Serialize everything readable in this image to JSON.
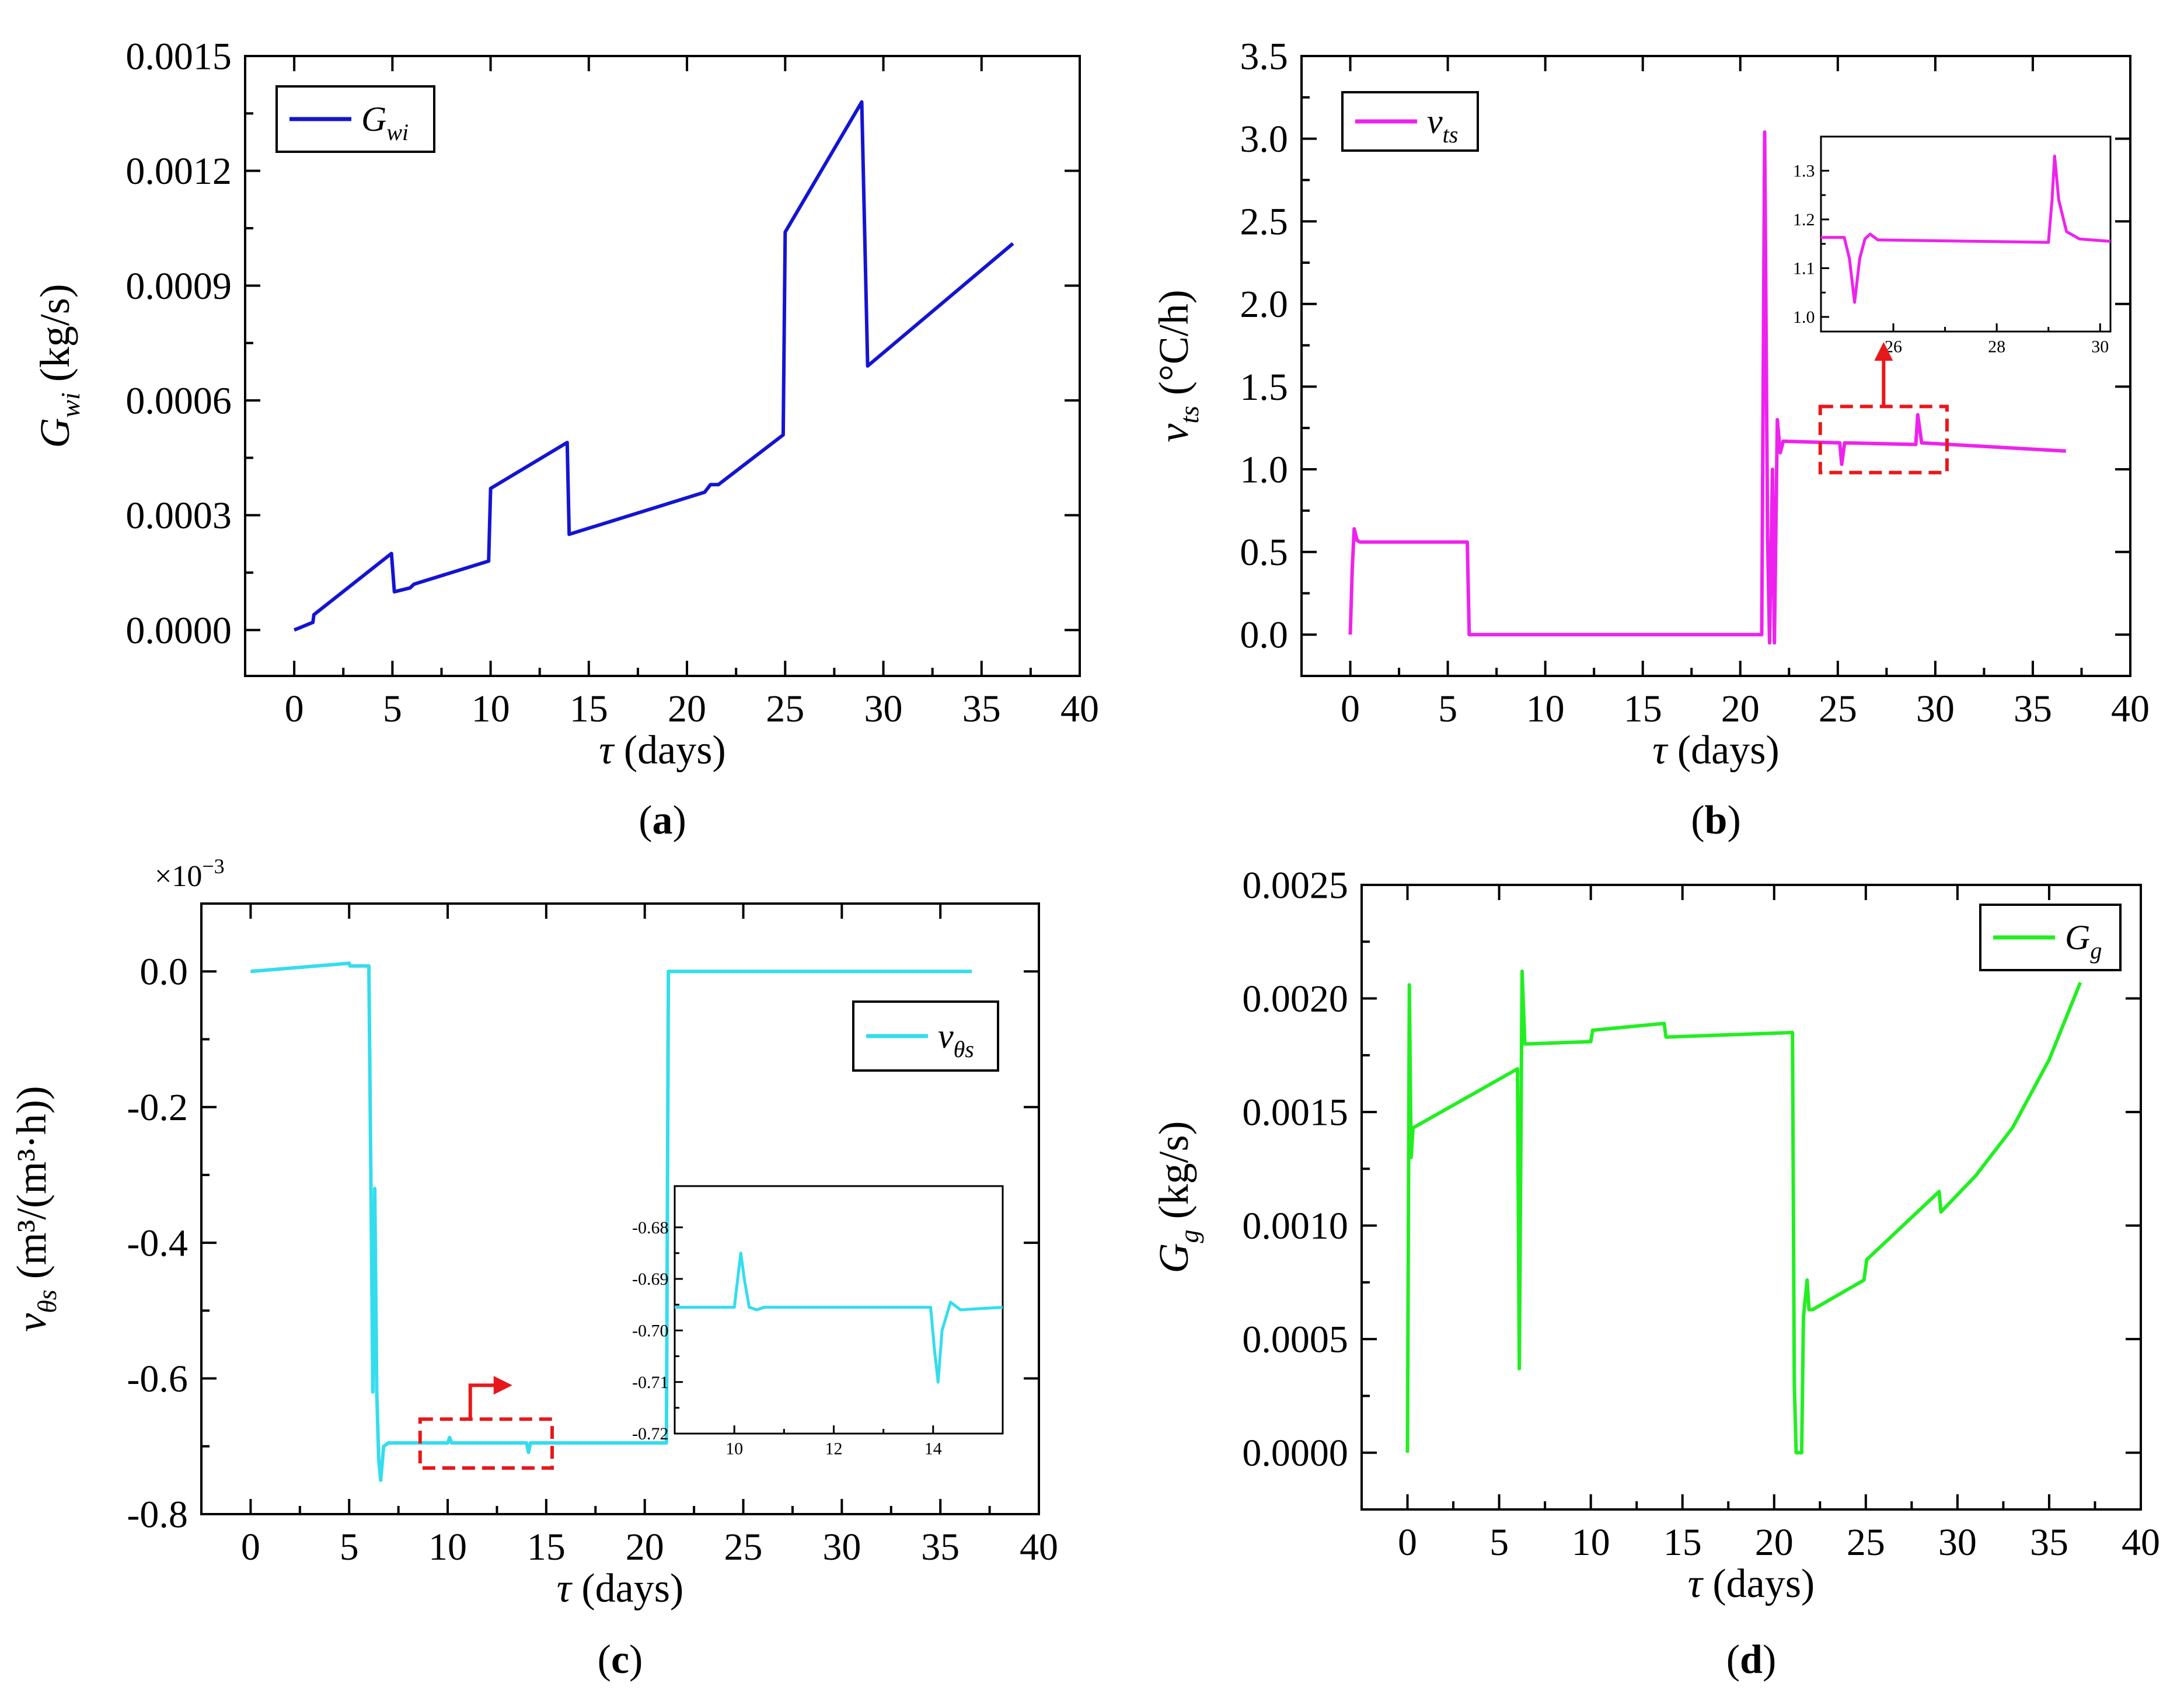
{
  "chart_data": [
    {
      "id": "a",
      "type": "line",
      "panel_label": "a",
      "xlabel_symbol": "τ",
      "xlabel_unit": "(days)",
      "ylabel_main": "G",
      "ylabel_sub": "wi",
      "ylabel_unit": "(kg/s)",
      "xlim": [
        -2.5,
        40
      ],
      "ylim": [
        -0.00012,
        0.0015
      ],
      "xticks": [
        0,
        5,
        10,
        15,
        20,
        25,
        30,
        35,
        40
      ],
      "yticks": [
        0.0,
        0.0003,
        0.0006,
        0.0009,
        0.0012,
        0.0015
      ],
      "ytick_labels": [
        "0.0000",
        "0.0003",
        "0.0006",
        "0.0009",
        "0.0012",
        "0.0015"
      ],
      "legend": {
        "main": "G",
        "sub": "wi",
        "position": "top-left"
      },
      "series": [
        {
          "name": "G_wi",
          "color": "#1414d2",
          "points": [
            [
              0,
              0
            ],
            [
              0.95,
              2e-05
            ],
            [
              1.0,
              4e-05
            ],
            [
              4.95,
              0.0002
            ],
            [
              5.1,
              0.0001
            ],
            [
              5.9,
              0.00011
            ],
            [
              6.1,
              0.00012
            ],
            [
              9.9,
              0.00018
            ],
            [
              10.0,
              0.00037
            ],
            [
              13.9,
              0.00049
            ],
            [
              14.0,
              0.00025
            ],
            [
              20.9,
              0.00036
            ],
            [
              21.2,
              0.00038
            ],
            [
              21.6,
              0.00038
            ],
            [
              24.9,
              0.00051
            ],
            [
              25.0,
              0.00104
            ],
            [
              28.9,
              0.00138
            ],
            [
              29.2,
              0.00069
            ],
            [
              36.6,
              0.00101
            ]
          ]
        }
      ]
    },
    {
      "id": "b",
      "type": "line",
      "panel_label": "b",
      "xlabel_symbol": "τ",
      "xlabel_unit": "(days)",
      "ylabel_main": "v",
      "ylabel_sub": "ts",
      "ylabel_unit": "(°C/h)",
      "xlim": [
        -2.5,
        40
      ],
      "ylim": [
        -0.25,
        3.5
      ],
      "xticks": [
        0,
        5,
        10,
        15,
        20,
        25,
        30,
        35,
        40
      ],
      "yticks": [
        0.0,
        0.5,
        1.0,
        1.5,
        2.0,
        2.5,
        3.0,
        3.5
      ],
      "ytick_labels": [
        "0.0",
        "0.5",
        "1.0",
        "1.5",
        "2.0",
        "2.5",
        "3.0",
        "3.5"
      ],
      "legend": {
        "main": "v",
        "sub": "ts",
        "position": "top-left"
      },
      "series": [
        {
          "name": "v_ts",
          "color": "#ee22ee",
          "points": [
            [
              0,
              0
            ],
            [
              0.1,
              0.4
            ],
            [
              0.2,
              0.64
            ],
            [
              0.35,
              0.57
            ],
            [
              0.5,
              0.56
            ],
            [
              6,
              0.56
            ],
            [
              6.1,
              0
            ],
            [
              21.1,
              0
            ],
            [
              21.25,
              3.04
            ],
            [
              21.4,
              0.6
            ],
            [
              21.5,
              -0.05
            ],
            [
              21.65,
              1.0
            ],
            [
              21.75,
              -0.05
            ],
            [
              21.9,
              1.3
            ],
            [
              22.05,
              1.1
            ],
            [
              22.2,
              1.17
            ],
            [
              25.1,
              1.16
            ],
            [
              25.2,
              1.03
            ],
            [
              25.35,
              1.16
            ],
            [
              29.0,
              1.15
            ],
            [
              29.1,
              1.33
            ],
            [
              29.3,
              1.16
            ],
            [
              36.7,
              1.11
            ]
          ]
        }
      ],
      "inset": {
        "xlim": [
          24.6,
          30.2
        ],
        "ylim": [
          0.97,
          1.37
        ],
        "xticks": [
          26,
          28,
          30
        ],
        "yticks": [
          1.0,
          1.1,
          1.2,
          1.3
        ],
        "ytick_labels": [
          "1.0",
          "1.1",
          "1.2",
          "1.3"
        ],
        "points": [
          [
            24.6,
            1.163
          ],
          [
            25.05,
            1.163
          ],
          [
            25.15,
            1.12
          ],
          [
            25.25,
            1.03
          ],
          [
            25.35,
            1.12
          ],
          [
            25.45,
            1.16
          ],
          [
            25.55,
            1.17
          ],
          [
            25.7,
            1.158
          ],
          [
            29.0,
            1.153
          ],
          [
            29.07,
            1.24
          ],
          [
            29.12,
            1.33
          ],
          [
            29.2,
            1.24
          ],
          [
            29.35,
            1.175
          ],
          [
            29.6,
            1.16
          ],
          [
            30.2,
            1.155
          ]
        ],
        "zoom_box_xlim": [
          24.1,
          30.6
        ],
        "zoom_box_ylim": [
          0.98,
          1.38
        ]
      }
    },
    {
      "id": "c",
      "type": "line",
      "panel_label": "c",
      "multiplier_label": "×10",
      "multiplier_exp": "−3",
      "xlabel_symbol": "τ",
      "xlabel_unit": "(days)",
      "ylabel_main": "v",
      "ylabel_sub": "θs",
      "ylabel_unit": "(m³/(m³·h))",
      "xlim": [
        -2.5,
        40
      ],
      "ylim": [
        -0.8,
        0.1
      ],
      "xticks": [
        0,
        5,
        10,
        15,
        20,
        25,
        30,
        35,
        40
      ],
      "yticks": [
        -0.8,
        -0.6,
        -0.4,
        -0.2,
        0.0
      ],
      "ytick_labels": [
        "-0.8",
        "-0.6",
        "-0.4",
        "-0.2",
        "0.0"
      ],
      "legend": {
        "main": "v",
        "sub": "θs",
        "position": "top-right"
      },
      "series": [
        {
          "name": "v_θs",
          "color": "#33ddee",
          "points": [
            [
              0,
              0
            ],
            [
              5,
              0.012
            ],
            [
              5.05,
              0.008
            ],
            [
              6,
              0.008
            ],
            [
              6.1,
              -0.3
            ],
            [
              6.2,
              -0.62
            ],
            [
              6.3,
              -0.32
            ],
            [
              6.4,
              -0.62
            ],
            [
              6.5,
              -0.72
            ],
            [
              6.6,
              -0.75
            ],
            [
              6.75,
              -0.7
            ],
            [
              7.0,
              -0.695
            ],
            [
              10,
              -0.695
            ],
            [
              10.1,
              -0.687
            ],
            [
              10.2,
              -0.695
            ],
            [
              14,
              -0.695
            ],
            [
              14.1,
              -0.709
            ],
            [
              14.2,
              -0.695
            ],
            [
              21.1,
              -0.695
            ],
            [
              21.2,
              0
            ],
            [
              36.6,
              0
            ]
          ]
        }
      ],
      "inset": {
        "xlim": [
          8.8,
          15.4
        ],
        "ylim": [
          -0.72,
          -0.672
        ],
        "xticks": [
          10,
          12,
          14
        ],
        "yticks": [
          -0.72,
          -0.71,
          -0.7,
          -0.69,
          -0.68
        ],
        "ytick_labels": [
          "-0.72",
          "-0.71",
          "-0.70",
          "-0.69",
          "-0.68"
        ],
        "points": [
          [
            8.8,
            -0.6955
          ],
          [
            10.0,
            -0.6955
          ],
          [
            10.08,
            -0.689
          ],
          [
            10.13,
            -0.685
          ],
          [
            10.2,
            -0.69
          ],
          [
            10.3,
            -0.6955
          ],
          [
            10.45,
            -0.696
          ],
          [
            10.6,
            -0.6955
          ],
          [
            13.95,
            -0.6955
          ],
          [
            14.03,
            -0.704
          ],
          [
            14.1,
            -0.71
          ],
          [
            14.18,
            -0.7
          ],
          [
            14.35,
            -0.6945
          ],
          [
            14.55,
            -0.696
          ],
          [
            15.4,
            -0.6955
          ]
        ],
        "zoom_box_xlim": [
          8.6,
          15.3
        ],
        "zoom_box_ylim": [
          -0.732,
          -0.66
        ]
      }
    },
    {
      "id": "d",
      "type": "line",
      "panel_label": "d",
      "xlabel_symbol": "τ",
      "xlabel_unit": "(days)",
      "ylabel_main": "G",
      "ylabel_sub": "g",
      "ylabel_unit": "(kg/s)",
      "xlim": [
        -2.5,
        40
      ],
      "ylim": [
        -0.00025,
        0.0025
      ],
      "xticks": [
        0,
        5,
        10,
        15,
        20,
        25,
        30,
        35,
        40
      ],
      "yticks": [
        0.0,
        0.0005,
        0.001,
        0.0015,
        0.002,
        0.0025
      ],
      "ytick_labels": [
        "0.0000",
        "0.0005",
        "0.0010",
        "0.0015",
        "0.0020",
        "0.0025"
      ],
      "legend": {
        "main": "G",
        "sub": "g",
        "position": "top-right"
      },
      "series": [
        {
          "name": "G_g",
          "color": "#22ee22",
          "points": [
            [
              0,
              0
            ],
            [
              0.1,
              0.00206
            ],
            [
              0.2,
              0.0013
            ],
            [
              0.3,
              0.00143
            ],
            [
              6.0,
              0.00169
            ],
            [
              6.1,
              0.00037
            ],
            [
              6.25,
              0.00212
            ],
            [
              6.4,
              0.0018
            ],
            [
              6.6,
              0.0018
            ],
            [
              10,
              0.00181
            ],
            [
              10.1,
              0.00186
            ],
            [
              14,
              0.00189
            ],
            [
              14.1,
              0.00183
            ],
            [
              21,
              0.00185
            ],
            [
              21.1,
              0.0003
            ],
            [
              21.2,
              0
            ],
            [
              21.5,
              0
            ],
            [
              21.6,
              0.0006
            ],
            [
              21.8,
              0.00076
            ],
            [
              21.9,
              0.00063
            ],
            [
              22.1,
              0.00063
            ],
            [
              24.9,
              0.00076
            ],
            [
              25.05,
              0.00085
            ],
            [
              29,
              0.00115
            ],
            [
              29.1,
              0.00106
            ],
            [
              31,
              0.00122
            ],
            [
              33,
              0.00143
            ],
            [
              35,
              0.00173
            ],
            [
              36.7,
              0.00207
            ]
          ]
        }
      ]
    }
  ]
}
